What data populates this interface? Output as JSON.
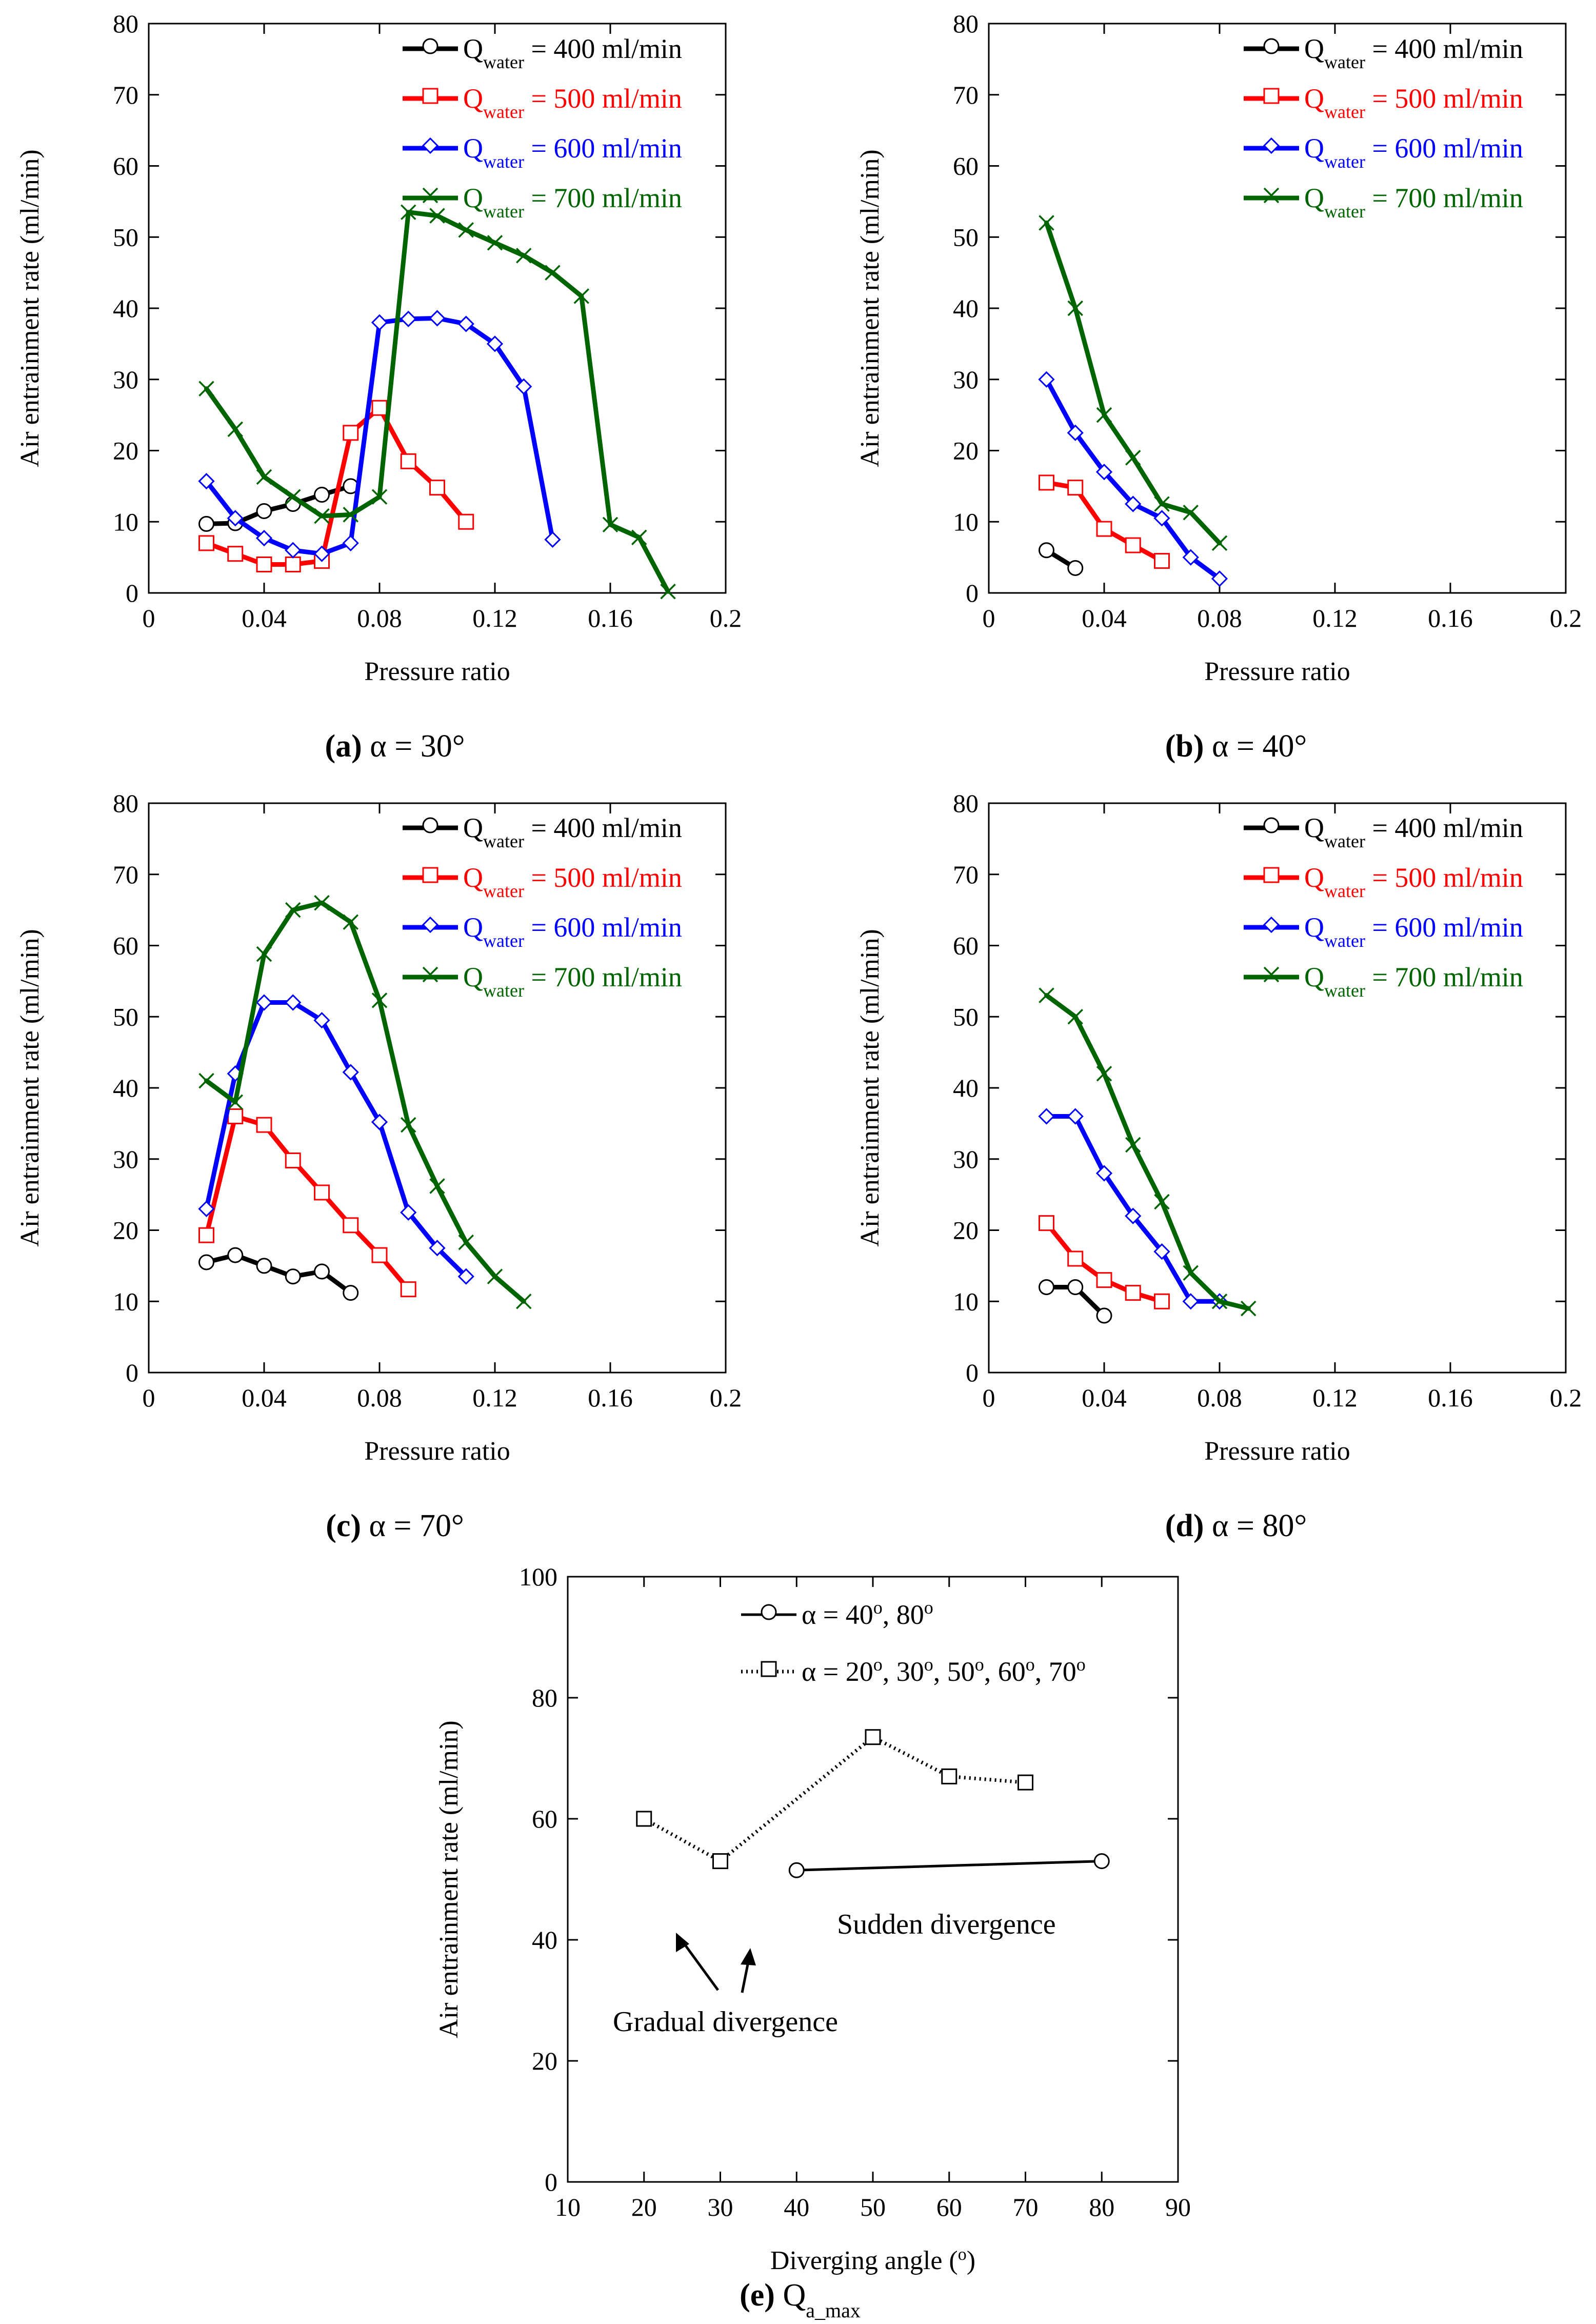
{
  "chart_data": [
    {
      "id": "a",
      "type": "line",
      "panel_label": "(a)",
      "caption_text": " α = 30°",
      "xlabel": "Pressure ratio",
      "ylabel": "Air entrainment rate (ml/min)",
      "xlim": [
        0,
        0.2
      ],
      "ylim": [
        0,
        80
      ],
      "xticks": [
        "0",
        "0.04",
        "0.08",
        "0.12",
        "0.16",
        "0.2"
      ],
      "yticks": [
        "0",
        "10",
        "20",
        "30",
        "40",
        "50",
        "60",
        "70",
        "80"
      ],
      "legend_placement": "top-right",
      "series": [
        {
          "q": "Q",
          "sub": "water",
          "rest": " = 400 ml/min",
          "color": "#000000",
          "marker": "circle",
          "x": [
            0.02,
            0.03,
            0.04,
            0.05,
            0.06,
            0.07
          ],
          "y": [
            9.7,
            9.8,
            11.5,
            12.5,
            13.8,
            15
          ]
        },
        {
          "q": "Q",
          "sub": "water",
          "rest": " = 500 ml/min",
          "color": "#ff0000",
          "marker": "square",
          "x": [
            0.02,
            0.03,
            0.04,
            0.05,
            0.06,
            0.07,
            0.08,
            0.09,
            0.1,
            0.11
          ],
          "y": [
            7,
            5.5,
            4,
            4,
            4.5,
            22.5,
            26,
            18.5,
            14.8,
            10
          ]
        },
        {
          "q": "Q",
          "sub": "water",
          "rest": " = 600 ml/min",
          "color": "#0000ff",
          "marker": "diamond",
          "x": [
            0.02,
            0.03,
            0.04,
            0.05,
            0.06,
            0.07,
            0.08,
            0.09,
            0.1,
            0.11,
            0.12,
            0.13,
            0.14
          ],
          "y": [
            15.7,
            10.5,
            7.7,
            6,
            5.5,
            7,
            38,
            38.5,
            38.6,
            37.8,
            35,
            29,
            7.5
          ]
        },
        {
          "q": "Q",
          "sub": "water",
          "rest": " = 700 ml/min",
          "color": "#006400",
          "marker": "x",
          "x": [
            0.02,
            0.03,
            0.04,
            0.05,
            0.06,
            0.07,
            0.08,
            0.09,
            0.1,
            0.11,
            0.12,
            0.13,
            0.14,
            0.15,
            0.16,
            0.17,
            0.18
          ],
          "y": [
            28.7,
            23,
            16.3,
            13.5,
            10.8,
            11,
            13.5,
            53.5,
            53,
            51,
            49.2,
            47.4,
            45,
            41.7,
            9.6,
            7.8,
            0.2
          ]
        }
      ]
    },
    {
      "id": "b",
      "type": "line",
      "panel_label": "(b)",
      "caption_text": " α = 40°",
      "xlabel": "Pressure ratio",
      "ylabel": "Air entrainment rate (ml/min)",
      "xlim": [
        0,
        0.2
      ],
      "ylim": [
        0,
        80
      ],
      "xticks": [
        "0",
        "0.04",
        "0.08",
        "0.12",
        "0.16",
        "0.2"
      ],
      "yticks": [
        "0",
        "10",
        "20",
        "30",
        "40",
        "50",
        "60",
        "70",
        "80"
      ],
      "legend_placement": "top-right",
      "series": [
        {
          "q": "Q",
          "sub": "water",
          "rest": " = 400 ml/min",
          "color": "#000000",
          "marker": "circle",
          "x": [
            0.02,
            0.03
          ],
          "y": [
            6,
            3.5
          ]
        },
        {
          "q": "Q",
          "sub": "water",
          "rest": " = 500 ml/min",
          "color": "#ff0000",
          "marker": "square",
          "x": [
            0.02,
            0.03,
            0.04,
            0.05,
            0.06
          ],
          "y": [
            15.5,
            14.8,
            9,
            6.7,
            4.5
          ]
        },
        {
          "q": "Q",
          "sub": "water",
          "rest": " = 600 ml/min",
          "color": "#0000ff",
          "marker": "diamond",
          "x": [
            0.02,
            0.03,
            0.04,
            0.05,
            0.06,
            0.07,
            0.08
          ],
          "y": [
            30,
            22.5,
            17,
            12.5,
            10.5,
            5,
            2
          ]
        },
        {
          "q": "Q",
          "sub": "water",
          "rest": " = 700 ml/min",
          "color": "#006400",
          "marker": "x",
          "x": [
            0.02,
            0.03,
            0.04,
            0.05,
            0.06,
            0.07,
            0.08
          ],
          "y": [
            52,
            40,
            25,
            19,
            12.5,
            11.3,
            7
          ]
        }
      ]
    },
    {
      "id": "c",
      "type": "line",
      "panel_label": "(c)",
      "caption_text": " α = 70°",
      "xlabel": "Pressure ratio",
      "ylabel": "Air entrainment rate (ml/min)",
      "xlim": [
        0,
        0.2
      ],
      "ylim": [
        0,
        80
      ],
      "xticks": [
        "0",
        "0.04",
        "0.08",
        "0.12",
        "0.16",
        "0.2"
      ],
      "yticks": [
        "0",
        "10",
        "20",
        "30",
        "40",
        "50",
        "60",
        "70",
        "80"
      ],
      "legend_placement": "top-right",
      "series": [
        {
          "q": "Q",
          "sub": "water",
          "rest": " = 400 ml/min",
          "color": "#000000",
          "marker": "circle",
          "x": [
            0.02,
            0.03,
            0.04,
            0.05,
            0.06,
            0.07
          ],
          "y": [
            15.5,
            16.5,
            15,
            13.5,
            14.2,
            11.2
          ]
        },
        {
          "q": "Q",
          "sub": "water",
          "rest": " = 500 ml/min",
          "color": "#ff0000",
          "marker": "square",
          "x": [
            0.02,
            0.03,
            0.04,
            0.05,
            0.06,
            0.07,
            0.08,
            0.09
          ],
          "y": [
            19.3,
            36,
            34.8,
            29.8,
            25.3,
            20.7,
            16.5,
            11.7
          ]
        },
        {
          "q": "Q",
          "sub": "water",
          "rest": " = 600 ml/min",
          "color": "#0000ff",
          "marker": "diamond",
          "x": [
            0.02,
            0.03,
            0.04,
            0.05,
            0.06,
            0.07,
            0.08,
            0.09,
            0.1,
            0.11
          ],
          "y": [
            23,
            42,
            52,
            52,
            49.5,
            42.2,
            35.2,
            22.5,
            17.5,
            13.5
          ]
        },
        {
          "q": "Q",
          "sub": "water",
          "rest": " = 700 ml/min",
          "color": "#006400",
          "marker": "x",
          "x": [
            0.02,
            0.03,
            0.04,
            0.05,
            0.06,
            0.07,
            0.08,
            0.09,
            0.1,
            0.11,
            0.12,
            0.13
          ],
          "y": [
            41,
            38,
            58.8,
            65,
            66,
            63.3,
            52.3,
            34.8,
            26.2,
            18.3,
            13.5,
            10
          ]
        }
      ]
    },
    {
      "id": "d",
      "type": "line",
      "panel_label": "(d)",
      "caption_text": " α = 80°",
      "xlabel": "Pressure ratio",
      "ylabel": "Air entrainment rate (ml/min)",
      "xlim": [
        0,
        0.2
      ],
      "ylim": [
        0,
        80
      ],
      "xticks": [
        "0",
        "0.04",
        "0.08",
        "0.12",
        "0.16",
        "0.2"
      ],
      "yticks": [
        "0",
        "10",
        "20",
        "30",
        "40",
        "50",
        "60",
        "70",
        "80"
      ],
      "legend_placement": "top-right",
      "series": [
        {
          "q": "Q",
          "sub": "water",
          "rest": " = 400 ml/min",
          "color": "#000000",
          "marker": "circle",
          "x": [
            0.02,
            0.03,
            0.04
          ],
          "y": [
            12,
            12,
            8
          ]
        },
        {
          "q": "Q",
          "sub": "water",
          "rest": " = 500 ml/min",
          "color": "#ff0000",
          "marker": "square",
          "x": [
            0.02,
            0.03,
            0.04,
            0.05,
            0.06
          ],
          "y": [
            21,
            16,
            13,
            11.2,
            10
          ]
        },
        {
          "q": "Q",
          "sub": "water",
          "rest": " = 600 ml/min",
          "color": "#0000ff",
          "marker": "diamond",
          "x": [
            0.02,
            0.03,
            0.04,
            0.05,
            0.06,
            0.07,
            0.08
          ],
          "y": [
            36,
            36,
            28,
            22,
            17,
            10,
            10
          ]
        },
        {
          "q": "Q",
          "sub": "water",
          "rest": " = 700 ml/min",
          "color": "#006400",
          "marker": "x",
          "x": [
            0.02,
            0.03,
            0.04,
            0.05,
            0.06,
            0.07,
            0.08,
            0.09
          ],
          "y": [
            53,
            50,
            42,
            32,
            24,
            14,
            10,
            9
          ]
        }
      ]
    },
    {
      "id": "e",
      "type": "line",
      "panel_label": "(e)",
      "caption_text": " Q",
      "caption_sub": "a_max",
      "xlabel": "Diverging angle (",
      "xlabel_sup": "o",
      "xlabel_end": ")",
      "ylabel": "Air entrainment rate (ml/min)",
      "xlim": [
        10,
        90
      ],
      "ylim": [
        0,
        100
      ],
      "xticks": [
        "10",
        "20",
        "30",
        "40",
        "50",
        "60",
        "70",
        "80",
        "90"
      ],
      "yticks": [
        "0",
        "20",
        "40",
        "60",
        "80",
        "100"
      ],
      "legend_placement": "top-right",
      "series": [
        {
          "label_parts": [
            "α = 40",
            "o",
            ",  80",
            "o"
          ],
          "color": "#000000",
          "marker": "circle",
          "dash": "solid",
          "x": [
            40,
            80
          ],
          "y": [
            51.5,
            53
          ]
        },
        {
          "label_parts": [
            "α = 20",
            "o",
            ",  30",
            "o",
            ", 50",
            "o",
            ",  60",
            "o",
            ", 70",
            "o"
          ],
          "color": "#000000",
          "marker": "square",
          "dash": "dotted",
          "x": [
            20,
            30,
            50,
            60,
            70
          ],
          "y": [
            60,
            53,
            73.5,
            67,
            66
          ]
        }
      ],
      "annotations": [
        {
          "text": "Sudden divergence"
        },
        {
          "text": "Gradual divergence"
        }
      ]
    }
  ]
}
